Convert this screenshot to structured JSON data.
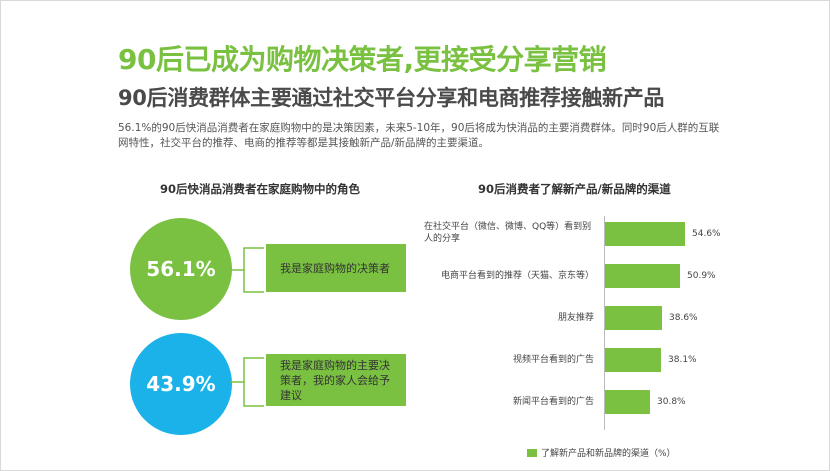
{
  "title": "90后已成为购物决策者,更接受分享营销",
  "subtitle": "90后消费群体主要通过社交平台分享和电商推荐接触新产品",
  "description": "56.1%的90后快消品消费者在家庭购物中的是决策因素，未来5-10年，90后将成为快消品的主要消费群体。同时90后人群的互联网特性，社交平台的推荐、电商的推荐等都是其接触新产品/新品牌的主要渠道。",
  "left_panel": {
    "title": "90后快消品消费者在家庭购物中的角色",
    "items": [
      {
        "percent": "56.1%",
        "label": "我是家庭购物的决策者",
        "color": "#7ac142"
      },
      {
        "percent": "43.9%",
        "label": "我是家庭购物的主要决策者，我的家人会给予建议",
        "color": "#1ab2e8"
      }
    ]
  },
  "chart_data": {
    "type": "bar",
    "orientation": "horizontal",
    "title": "90后消费者了解新产品/新品牌的渠道",
    "categories": [
      "在社交平台（微信、微博、QQ等）看到别人的分享",
      "电商平台看到的推荐（天猫、京东等）",
      "朋友推荐",
      "视频平台看到的广告",
      "新闻平台看到的广告"
    ],
    "series": [
      {
        "name": "了解新产品和新品牌的渠道（%）",
        "values": [
          54.6,
          50.9,
          38.6,
          38.1,
          30.8
        ]
      }
    ],
    "value_labels": [
      "54.6%",
      "50.9%",
      "38.6%",
      "38.1%",
      "30.8%"
    ],
    "legend_position": "bottom",
    "color": "#7ac142",
    "xlim": [
      0,
      60
    ]
  }
}
